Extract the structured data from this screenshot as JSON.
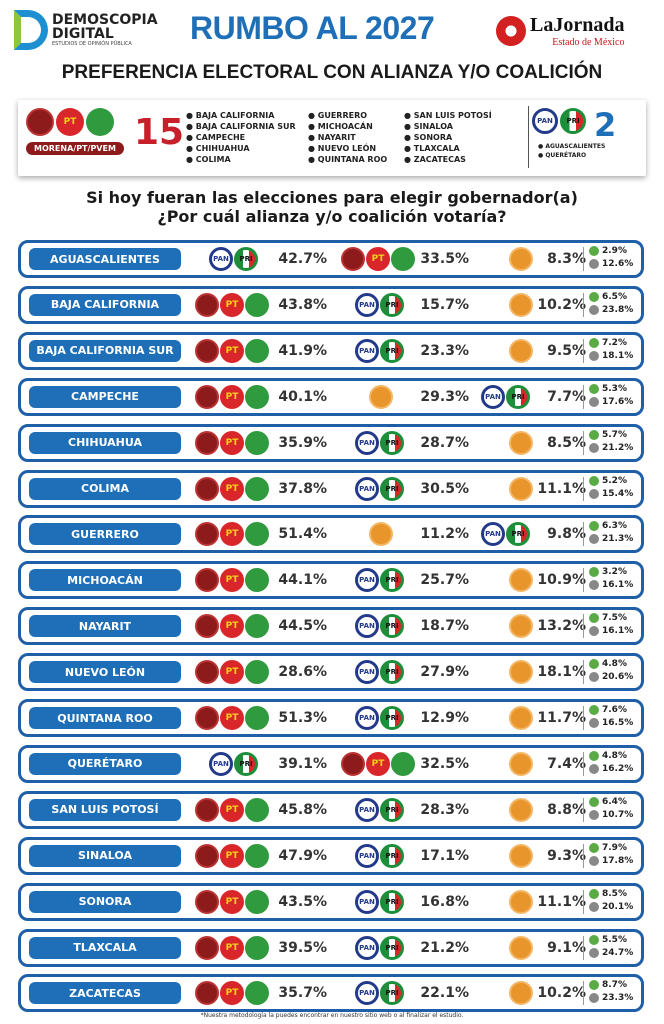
{
  "header": {
    "brand_name": "DEMOSCOPIA DIGITAL",
    "brand_line1": "DEMOSCOPIA",
    "brand_line2": "DIGITAL",
    "brand_tagline": "ESTUDIOS DE OPINIÓN PÚBLICA",
    "title": "RUMBO AL 2027",
    "partner_name": "LaJornada",
    "partner_region": "Estado de México",
    "subtitle": "PREFERENCIA ELECTORAL CON ALIANZA Y/O COALICIÓN"
  },
  "summary": {
    "coalition_a": {
      "label": "MORENA/PT/PVEM",
      "count": "15",
      "logos": [
        "morena",
        "pt",
        "pvem"
      ],
      "states_col1": [
        "BAJA CALIFORNIA",
        "BAJA CALIFORNIA SUR",
        "CAMPECHE",
        "CHIHUAHUA",
        "COLIMA"
      ],
      "states_col2": [
        "GUERRERO",
        "MICHOACÁN",
        "NAYARIT",
        "NUEVO LEÓN",
        "QUINTANA ROO"
      ],
      "states_col3": [
        "SAN LUIS POTOSÍ",
        "SINALOA",
        "SONORA",
        "TLAXCALA",
        "ZACATECAS"
      ]
    },
    "coalition_b": {
      "count": "2",
      "logos": [
        "pan",
        "pri"
      ],
      "states": [
        "AGUASCALIENTES",
        "QUERÉTARO"
      ]
    }
  },
  "question": {
    "line1": "Si hoy fueran las elecciones para elegir gobernador(a)",
    "line2": "¿Por cuál alianza y/o coalición votaría?"
  },
  "colors": {
    "accent": "#1e6fb8",
    "row_border": "#1e5fa8",
    "morena": "#8e1b1b",
    "pt": "#d8262a",
    "pvem": "#2f9a3e",
    "pan": "#233a8b",
    "pri": "#1d8f3a",
    "mc": "#e8962b",
    "count_a": "#c8202a"
  },
  "logo_text": {
    "pt": "PT",
    "pan": "PAN",
    "pri": "PRI"
  },
  "icons": {
    "small_1": "green-bell-icon",
    "small_2": "gray-question-icon"
  },
  "rows": [
    {
      "state": "AGUASCALIENTES",
      "results": [
        {
          "c": "pan-pri",
          "pct": "42.7%"
        },
        {
          "c": "morena-pt-pvem",
          "pct": "33.5%"
        },
        {
          "c": "mc",
          "pct": "8.3%"
        }
      ],
      "other": "2.9%",
      "unknown": "12.6%"
    },
    {
      "state": "BAJA CALIFORNIA",
      "results": [
        {
          "c": "morena-pt-pvem",
          "pct": "43.8%"
        },
        {
          "c": "pan-pri",
          "pct": "15.7%"
        },
        {
          "c": "mc",
          "pct": "10.2%"
        }
      ],
      "other": "6.5%",
      "unknown": "23.8%"
    },
    {
      "state": "BAJA CALIFORNIA SUR",
      "results": [
        {
          "c": "morena-pt-pvem",
          "pct": "41.9%"
        },
        {
          "c": "pan-pri",
          "pct": "23.3%"
        },
        {
          "c": "mc",
          "pct": "9.5%"
        }
      ],
      "other": "7.2%",
      "unknown": "18.1%"
    },
    {
      "state": "CAMPECHE",
      "results": [
        {
          "c": "morena-pt-pvem",
          "pct": "40.1%"
        },
        {
          "c": "mc",
          "pct": "29.3%"
        },
        {
          "c": "pan-pri",
          "pct": "7.7%"
        }
      ],
      "other": "5.3%",
      "unknown": "17.6%"
    },
    {
      "state": "CHIHUAHUA",
      "results": [
        {
          "c": "morena-pt-pvem",
          "pct": "35.9%"
        },
        {
          "c": "pan-pri",
          "pct": "28.7%"
        },
        {
          "c": "mc",
          "pct": "8.5%"
        }
      ],
      "other": "5.7%",
      "unknown": "21.2%"
    },
    {
      "state": "COLIMA",
      "results": [
        {
          "c": "morena-pt-pvem",
          "pct": "37.8%"
        },
        {
          "c": "pan-pri",
          "pct": "30.5%"
        },
        {
          "c": "mc",
          "pct": "11.1%"
        }
      ],
      "other": "5.2%",
      "unknown": "15.4%"
    },
    {
      "state": "GUERRERO",
      "results": [
        {
          "c": "morena-pt-pvem",
          "pct": "51.4%"
        },
        {
          "c": "mc",
          "pct": "11.2%"
        },
        {
          "c": "pan-pri",
          "pct": "9.8%"
        }
      ],
      "other": "6.3%",
      "unknown": "21.3%"
    },
    {
      "state": "MICHOACÁN",
      "results": [
        {
          "c": "morena-pt-pvem",
          "pct": "44.1%"
        },
        {
          "c": "pan-pri",
          "pct": "25.7%"
        },
        {
          "c": "mc",
          "pct": "10.9%"
        }
      ],
      "other": "3.2%",
      "unknown": "16.1%"
    },
    {
      "state": "NAYARIT",
      "results": [
        {
          "c": "morena-pt-pvem",
          "pct": "44.5%"
        },
        {
          "c": "pan-pri",
          "pct": "18.7%"
        },
        {
          "c": "mc",
          "pct": "13.2%"
        }
      ],
      "other": "7.5%",
      "unknown": "16.1%"
    },
    {
      "state": "NUEVO LEÓN",
      "results": [
        {
          "c": "morena-pt-pvem",
          "pct": "28.6%"
        },
        {
          "c": "pan-pri",
          "pct": "27.9%"
        },
        {
          "c": "mc",
          "pct": "18.1%"
        }
      ],
      "other": "4.8%",
      "unknown": "20.6%"
    },
    {
      "state": "QUINTANA ROO",
      "results": [
        {
          "c": "morena-pt-pvem",
          "pct": "51.3%"
        },
        {
          "c": "pan-pri",
          "pct": "12.9%"
        },
        {
          "c": "mc",
          "pct": "11.7%"
        }
      ],
      "other": "7.6%",
      "unknown": "16.5%"
    },
    {
      "state": "QUERÉTARO",
      "results": [
        {
          "c": "pan-pri",
          "pct": "39.1%"
        },
        {
          "c": "morena-pt-pvem",
          "pct": "32.5%"
        },
        {
          "c": "mc",
          "pct": "7.4%"
        }
      ],
      "other": "4.8%",
      "unknown": "16.2%"
    },
    {
      "state": "SAN LUIS POTOSÍ",
      "results": [
        {
          "c": "morena-pt-pvem",
          "pct": "45.8%"
        },
        {
          "c": "pan-pri",
          "pct": "28.3%"
        },
        {
          "c": "mc",
          "pct": "8.8%"
        }
      ],
      "other": "6.4%",
      "unknown": "10.7%"
    },
    {
      "state": "SINALOA",
      "results": [
        {
          "c": "morena-pt-pvem",
          "pct": "47.9%"
        },
        {
          "c": "pan-pri",
          "pct": "17.1%"
        },
        {
          "c": "mc",
          "pct": "9.3%"
        }
      ],
      "other": "7.9%",
      "unknown": "17.8%"
    },
    {
      "state": "SONORA",
      "results": [
        {
          "c": "morena-pt-pvem",
          "pct": "43.5%"
        },
        {
          "c": "pan-pri",
          "pct": "16.8%"
        },
        {
          "c": "mc",
          "pct": "11.1%"
        }
      ],
      "other": "8.5%",
      "unknown": "20.1%"
    },
    {
      "state": "TLAXCALA",
      "results": [
        {
          "c": "morena-pt-pvem",
          "pct": "39.5%"
        },
        {
          "c": "pan-pri",
          "pct": "21.2%"
        },
        {
          "c": "mc",
          "pct": "9.1%"
        }
      ],
      "other": "5.5%",
      "unknown": "24.7%"
    },
    {
      "state": "ZACATECAS",
      "results": [
        {
          "c": "morena-pt-pvem",
          "pct": "35.7%"
        },
        {
          "c": "pan-pri",
          "pct": "22.1%"
        },
        {
          "c": "mc",
          "pct": "10.2%"
        }
      ],
      "other": "8.7%",
      "unknown": "23.3%"
    }
  ],
  "footnote": "*Nuestra metodología la puedes encontrar en nuestro sitio web o al finalizar el estudio."
}
